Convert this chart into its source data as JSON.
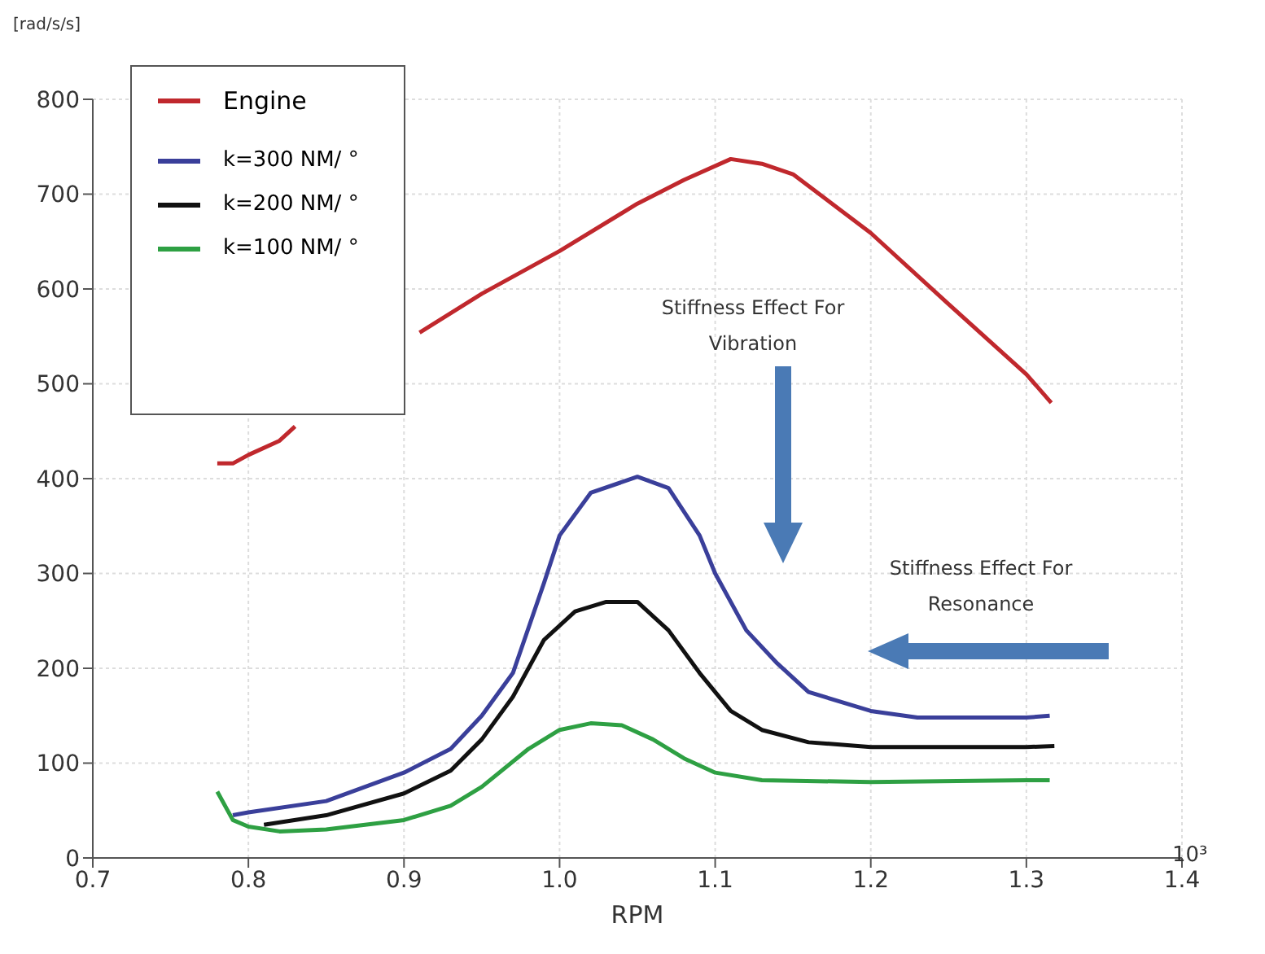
{
  "chart_data": {
    "type": "line",
    "xlabel": "RPM",
    "ylabel": "[rad/s/s]",
    "xlim": [
      0.7,
      1.4
    ],
    "xticks": [
      {
        "value": 0.7,
        "label": "0.7"
      },
      {
        "value": 0.8,
        "label": "0.8"
      },
      {
        "value": 0.9,
        "label": "0.9"
      },
      {
        "value": 1,
        "label": "1.0"
      },
      {
        "value": 1.1,
        "label": "1.1"
      },
      {
        "value": 1.2,
        "label": "1.2"
      },
      {
        "value": 1.3,
        "label": "1.3"
      },
      {
        "value": 1.4,
        "label": "1.4"
      }
    ],
    "ylim": [
      0,
      800
    ],
    "yticks": [
      0,
      100,
      200,
      300,
      400,
      500,
      600,
      700,
      800
    ],
    "grid": true,
    "legend": "top left",
    "marker": "none",
    "line_style": "solid",
    "annotations": [
      "10³",
      "Stiffness Effect For Vibration",
      "Stiffness Effect For Resonance"
    ],
    "series": [
      {
        "name": "Engine",
        "color": "#c0282d",
        "x": [
          0.78,
          0.79,
          0.8,
          0.82,
          0.83,
          0.86,
          0.91,
          0.95,
          1.0,
          1.05,
          1.08,
          1.11,
          1.13,
          1.15,
          1.2,
          1.25,
          1.3,
          1.316
        ],
        "values": [
          416,
          416,
          425,
          440,
          455,
          null,
          554,
          595,
          640,
          690,
          715,
          737,
          732,
          721,
          659,
          584,
          510,
          480
        ]
      },
      {
        "name": "k=300 NM/ °",
        "color": "#3a3f9a",
        "x": [
          0.79,
          0.8,
          0.85,
          0.9,
          0.93,
          0.95,
          0.97,
          0.99,
          1.0,
          1.02,
          1.05,
          1.07,
          1.09,
          1.1,
          1.12,
          1.14,
          1.16,
          1.2,
          1.23,
          1.3,
          1.315
        ],
        "values": [
          45,
          48,
          60,
          90,
          115,
          150,
          195,
          290,
          340,
          385,
          402,
          390,
          340,
          300,
          240,
          205,
          175,
          155,
          148,
          148,
          150
        ]
      },
      {
        "name": "k=200 NM/ °",
        "color": "#111111",
        "x": [
          0.81,
          0.85,
          0.9,
          0.93,
          0.95,
          0.97,
          0.99,
          1.01,
          1.03,
          1.05,
          1.07,
          1.09,
          1.11,
          1.13,
          1.16,
          1.2,
          1.3,
          1.318
        ],
        "values": [
          35,
          45,
          68,
          92,
          125,
          170,
          230,
          260,
          270,
          270,
          240,
          195,
          155,
          135,
          122,
          117,
          117,
          118
        ]
      },
      {
        "name": "k=100 NM/ °",
        "color": "#2ea043",
        "x": [
          0.78,
          0.79,
          0.8,
          0.82,
          0.85,
          0.9,
          0.93,
          0.95,
          0.98,
          1.0,
          1.02,
          1.04,
          1.06,
          1.08,
          1.1,
          1.13,
          1.2,
          1.3,
          1.315
        ],
        "values": [
          70,
          40,
          33,
          28,
          30,
          40,
          55,
          75,
          115,
          135,
          142,
          140,
          125,
          105,
          90,
          82,
          80,
          82,
          82
        ]
      }
    ]
  }
}
